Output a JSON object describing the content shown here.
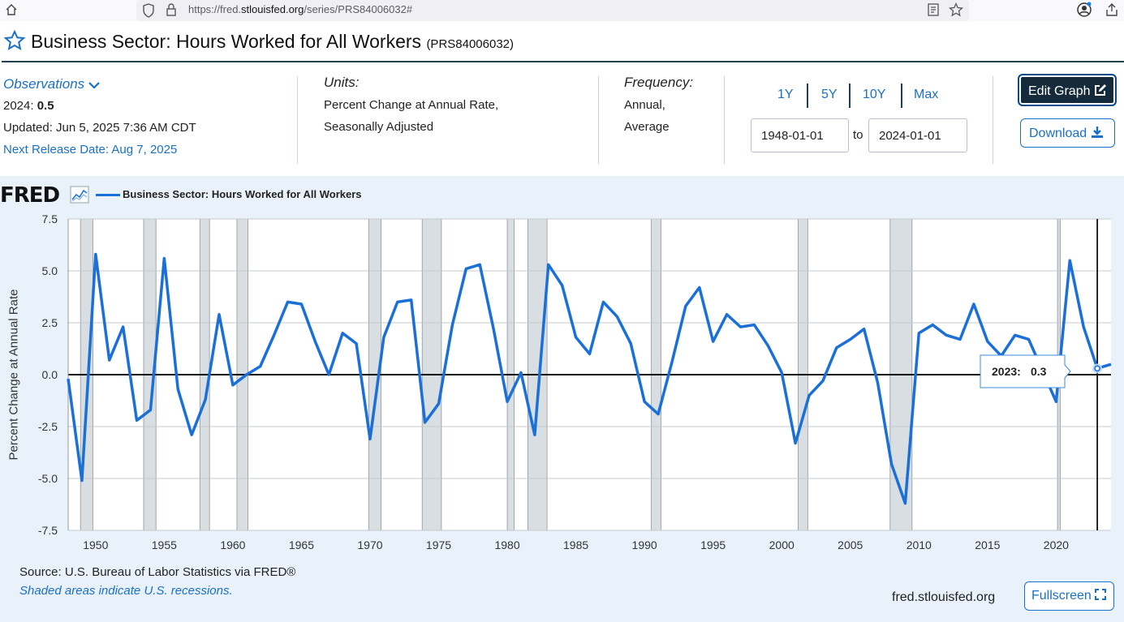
{
  "browser": {
    "url_prefix": "https://fred.",
    "url_host": "stlouisfed.org",
    "url_path": "/series/PRS84006032#"
  },
  "header": {
    "title": "Business Sector: Hours Worked for All Workers",
    "series_id": "(PRS84006032)"
  },
  "observations": {
    "label": "Observations",
    "latest_label": "2024:",
    "latest_value": "0.5",
    "updated": "Updated: Jun 5, 2025 7:36 AM CDT",
    "next_release": "Next Release Date: Aug 7, 2025"
  },
  "units": {
    "label": "Units:",
    "line1": "Percent Change at Annual Rate,",
    "line2": "Seasonally Adjusted"
  },
  "frequency": {
    "label": "Frequency:",
    "line1": "Annual,",
    "line2": "Average"
  },
  "range_buttons": [
    "1Y",
    "5Y",
    "10Y",
    "Max"
  ],
  "date_range": {
    "start": "1948-01-01",
    "to_label": "to",
    "end": "2024-01-01"
  },
  "buttons": {
    "edit": "Edit Graph",
    "download": "Download",
    "fullscreen": "Fullscreen"
  },
  "footer": {
    "source": "Source: U.S. Bureau of Labor Statistics via FRED®",
    "shade_note": "Shaded areas indicate U.S. recessions.",
    "site": "fred.stlouisfed.org"
  },
  "logo_text": "FRED",
  "colors": {
    "line": "#1a70d8",
    "recession": "#d9dee3",
    "panel": "#e9f2fa",
    "accent": "#1a70c8"
  },
  "chart_data": {
    "type": "line",
    "title": "",
    "ylabel": "Percent Change at Annual Rate",
    "xlabel": "",
    "ylim": [
      -7.5,
      7.5
    ],
    "xlim": [
      1948,
      2024
    ],
    "y_ticks": [
      "7.5",
      "5.0",
      "2.5",
      "0.0",
      "-2.5",
      "-5.0",
      "-7.5"
    ],
    "x_ticks": [
      "1950",
      "1955",
      "1960",
      "1965",
      "1970",
      "1975",
      "1980",
      "1985",
      "1990",
      "1995",
      "2000",
      "2005",
      "2010",
      "2015",
      "2020"
    ],
    "grid": true,
    "legend": "top-left",
    "series": [
      {
        "name": "Business Sector: Hours Worked for All Workers",
        "x": [
          1948,
          1949,
          1950,
          1951,
          1952,
          1953,
          1954,
          1955,
          1956,
          1957,
          1958,
          1959,
          1960,
          1961,
          1962,
          1963,
          1964,
          1965,
          1966,
          1967,
          1968,
          1969,
          1970,
          1971,
          1972,
          1973,
          1974,
          1975,
          1976,
          1977,
          1978,
          1979,
          1980,
          1981,
          1982,
          1983,
          1984,
          1985,
          1986,
          1987,
          1988,
          1989,
          1990,
          1991,
          1992,
          1993,
          1994,
          1995,
          1996,
          1997,
          1998,
          1999,
          2000,
          2001,
          2002,
          2003,
          2004,
          2005,
          2006,
          2007,
          2008,
          2009,
          2010,
          2011,
          2012,
          2013,
          2014,
          2015,
          2016,
          2017,
          2018,
          2019,
          2020,
          2021,
          2022,
          2023,
          2024
        ],
        "values": [
          -0.2,
          -5.1,
          5.8,
          0.7,
          2.3,
          -2.2,
          -1.7,
          5.6,
          -0.7,
          -2.9,
          -1.2,
          2.9,
          -0.5,
          0.0,
          0.4,
          1.9,
          3.5,
          3.4,
          1.6,
          0.0,
          2.0,
          1.5,
          -3.1,
          1.8,
          3.5,
          3.6,
          -2.3,
          -1.4,
          2.4,
          5.1,
          5.3,
          2.2,
          -1.3,
          0.1,
          -2.9,
          5.3,
          4.3,
          1.8,
          1.0,
          3.5,
          2.8,
          1.5,
          -1.3,
          -1.9,
          0.6,
          3.3,
          4.2,
          1.6,
          2.9,
          2.3,
          2.4,
          1.4,
          0.1,
          -3.3,
          -1.0,
          -0.3,
          1.3,
          1.7,
          2.2,
          -0.4,
          -4.3,
          -6.2,
          2.0,
          2.4,
          1.9,
          1.7,
          3.4,
          1.6,
          0.9,
          1.9,
          1.7,
          0.2,
          -1.3,
          5.5,
          2.3,
          0.3,
          0.5
        ]
      }
    ],
    "recessions": [
      [
        1948.9,
        1949.8
      ],
      [
        1953.5,
        1954.4
      ],
      [
        1957.6,
        1958.3
      ],
      [
        1960.3,
        1961.1
      ],
      [
        1969.9,
        1970.8
      ],
      [
        1973.8,
        1975.2
      ],
      [
        1980.0,
        1980.5
      ],
      [
        1981.5,
        1982.9
      ],
      [
        1990.5,
        1991.2
      ],
      [
        2001.2,
        2001.9
      ],
      [
        2007.9,
        2009.5
      ],
      [
        2020.1,
        2020.3
      ]
    ],
    "tooltip": {
      "label": "2023:",
      "value": "0.3"
    }
  }
}
